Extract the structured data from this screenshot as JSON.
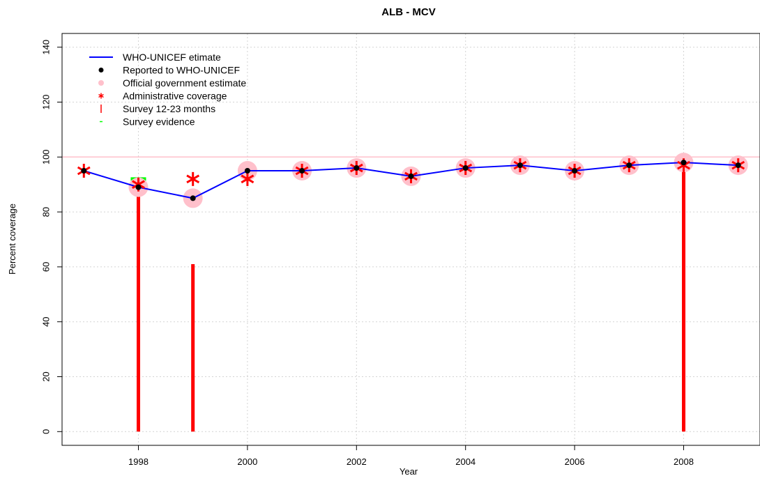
{
  "chart_data": {
    "type": "line",
    "title": "ALB  -  MCV",
    "xlabel": "Year",
    "ylabel": "Percent coverage",
    "xlim": [
      1996.6,
      2009.4
    ],
    "ylim": [
      -5,
      145
    ],
    "x_ticks": [
      1998,
      2000,
      2002,
      2004,
      2006,
      2008
    ],
    "y_ticks": [
      0,
      20,
      40,
      60,
      80,
      100,
      120,
      140
    ],
    "grid": true,
    "reference_line": 100,
    "legend": {
      "position": "top-left",
      "entries": [
        {
          "label": "WHO-UNICEF etimate",
          "symbol": "line",
          "color": "#0000ff"
        },
        {
          "label": "Reported to WHO-UNICEF",
          "symbol": "dot",
          "color": "#000000"
        },
        {
          "label": "Official government estimate",
          "symbol": "circle",
          "color": "#ffc0cb"
        },
        {
          "label": "Administrative coverage",
          "symbol": "star",
          "color": "#ff0000"
        },
        {
          "label": "Survey 12-23 months",
          "symbol": "vbar",
          "color": "#ff0000"
        },
        {
          "label": "Survey evidence",
          "symbol": "hbar",
          "color": "#00ff00"
        }
      ]
    },
    "x": [
      1997,
      1998,
      1999,
      2000,
      2001,
      2002,
      2003,
      2004,
      2005,
      2006,
      2007,
      2008,
      2009
    ],
    "series": [
      {
        "name": "WHO-UNICEF etimate",
        "color": "#0000ff",
        "values": [
          95,
          89,
          85,
          95,
          95,
          96,
          93,
          96,
          97,
          95,
          97,
          98,
          97
        ]
      },
      {
        "name": "Reported to WHO-UNICEF",
        "color": "#000000",
        "values": [
          95,
          89,
          85,
          95,
          95,
          96,
          93,
          96,
          97,
          95,
          97,
          98,
          97
        ]
      },
      {
        "name": "Official government estimate",
        "color": "#ffc0cb",
        "values": [
          null,
          89,
          85,
          95,
          95,
          96,
          93,
          96,
          97,
          95,
          97,
          98,
          97
        ]
      },
      {
        "name": "Administrative coverage",
        "color": "#ff0000",
        "values": [
          95,
          90,
          92,
          92,
          95,
          96,
          93,
          96,
          97,
          95,
          97,
          97,
          97
        ]
      }
    ],
    "survey_12_23_months": [
      {
        "x": 1998,
        "value": 90
      },
      {
        "x": 1999,
        "value": 61
      },
      {
        "x": 2008,
        "value": 97
      }
    ],
    "survey_evidence": [
      {
        "x": 1998,
        "value": 92
      }
    ]
  }
}
